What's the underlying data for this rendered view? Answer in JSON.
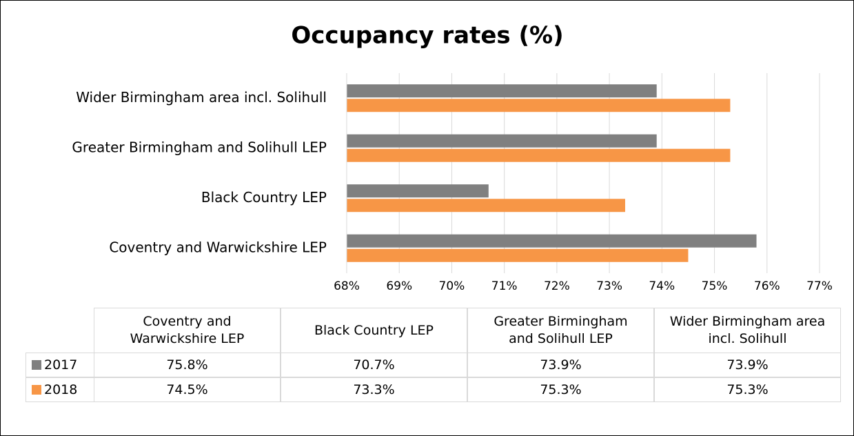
{
  "chart_data": {
    "type": "bar",
    "orientation": "horizontal",
    "title": "Occupancy rates (%)",
    "categories": [
      "Coventry and Warwickshire LEP",
      "Black Country LEP",
      "Greater Birmingham and Solihull LEP",
      "Wider Birmingham area incl. Solihull"
    ],
    "series": [
      {
        "name": "2017",
        "color": "#808080",
        "values": [
          75.8,
          70.7,
          73.9,
          73.9
        ],
        "value_labels": [
          "75.8%",
          "70.7%",
          "73.9%",
          "73.9%"
        ]
      },
      {
        "name": "2018",
        "color": "#f79646",
        "values": [
          74.5,
          73.3,
          75.3,
          75.3
        ],
        "value_labels": [
          "74.5%",
          "73.3%",
          "75.3%",
          "75.3%"
        ]
      }
    ],
    "xlim": [
      68,
      77
    ],
    "xticks": [
      {
        "value": 68,
        "label": "68%"
      },
      {
        "value": 69,
        "label": "69%"
      },
      {
        "value": 70,
        "label": "70%"
      },
      {
        "value": 71,
        "label": "71%"
      },
      {
        "value": 72,
        "label": "72%"
      },
      {
        "value": 73,
        "label": "73%"
      },
      {
        "value": 74,
        "label": "74%"
      },
      {
        "value": 75,
        "label": "75%"
      },
      {
        "value": 76,
        "label": "76%"
      },
      {
        "value": 77,
        "label": "77%"
      }
    ],
    "grid": true
  }
}
